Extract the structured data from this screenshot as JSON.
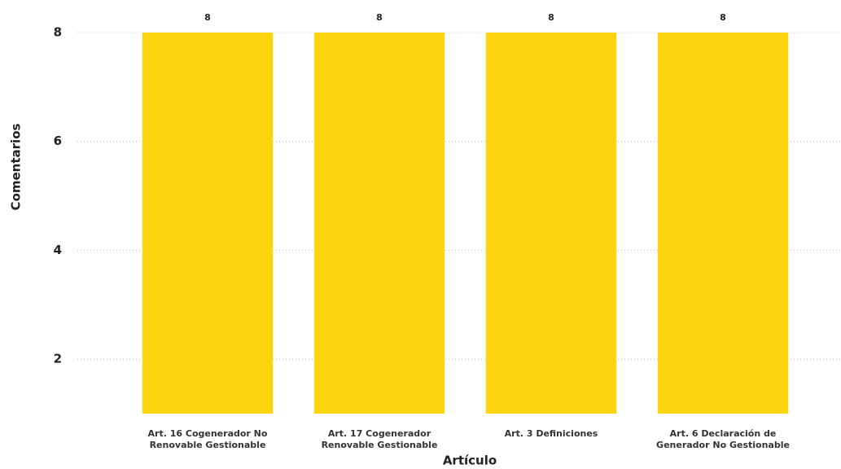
{
  "chart_data": {
    "type": "bar",
    "x_label": "Artículo",
    "y_label": "Comentarios",
    "categories": [
      "Art. 16 Cogenerador No Renovable Gestionable",
      "Art. 17 Cogenerador Renovable Gestionable",
      "Art. 3 Definiciones",
      "Art. 6 Declaración de Generador No Gestionable"
    ],
    "values": [
      8,
      8,
      8,
      8
    ],
    "color": "#FDD50F",
    "ylim": [
      1,
      8
    ],
    "yticks": [
      2,
      4,
      6,
      8
    ],
    "grid": true
  }
}
